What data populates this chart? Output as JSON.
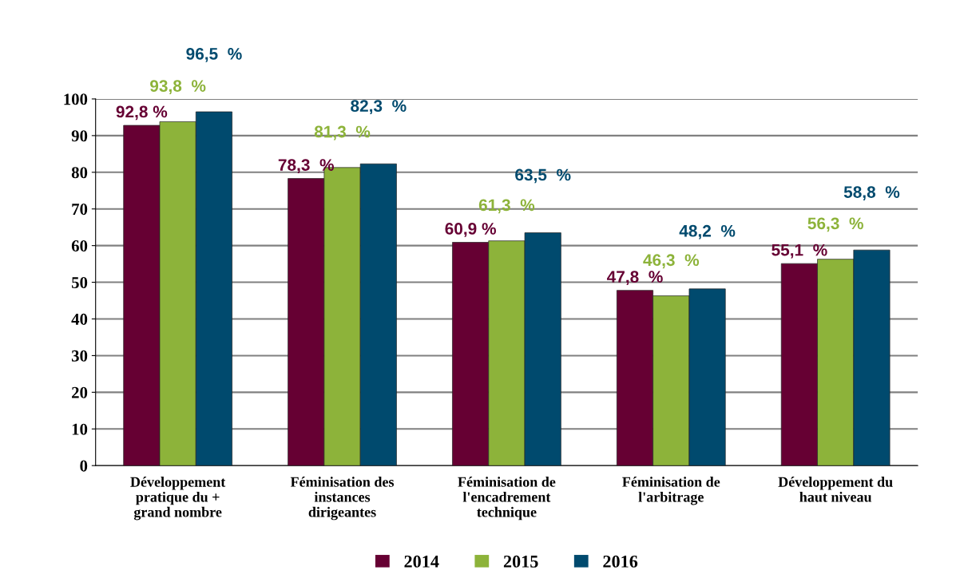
{
  "chart_data": {
    "type": "bar",
    "categories": [
      "Développement\npratique du +\ngrand nombre",
      "Féminisation des\ninstances\ndirigeantes",
      "Féminisation de\nl'encadrement\ntechnique",
      "Féminisation de\nl'arbitrage",
      "Développement du\nhaut niveau"
    ],
    "series": [
      {
        "name": "2014",
        "color": "#660033",
        "values": [
          92.8,
          78.3,
          60.9,
          47.8,
          55.1
        ],
        "value_labels": [
          "92,8 %",
          "78,3  %",
          "60,9 %",
          "47,8  %",
          "55,1  %"
        ]
      },
      {
        "name": "2015",
        "color": "#8db33a",
        "values": [
          93.8,
          81.3,
          61.3,
          46.3,
          56.3
        ],
        "value_labels": [
          "93,8  %",
          "81,3  %",
          "61,3  %",
          "46,3  %",
          "56,3  %"
        ]
      },
      {
        "name": "2016",
        "color": "#004a6e",
        "values": [
          96.5,
          82.3,
          63.5,
          48.2,
          58.8
        ],
        "value_labels": [
          "96,5  %",
          "82,3  %",
          "63,5  %",
          "48,2  %",
          "58,8  %"
        ]
      }
    ],
    "ylim": [
      0,
      100
    ],
    "yticks": [
      0,
      10,
      20,
      30,
      40,
      50,
      60,
      70,
      80,
      90,
      100
    ],
    "grid": "y",
    "legend": "bottom"
  }
}
